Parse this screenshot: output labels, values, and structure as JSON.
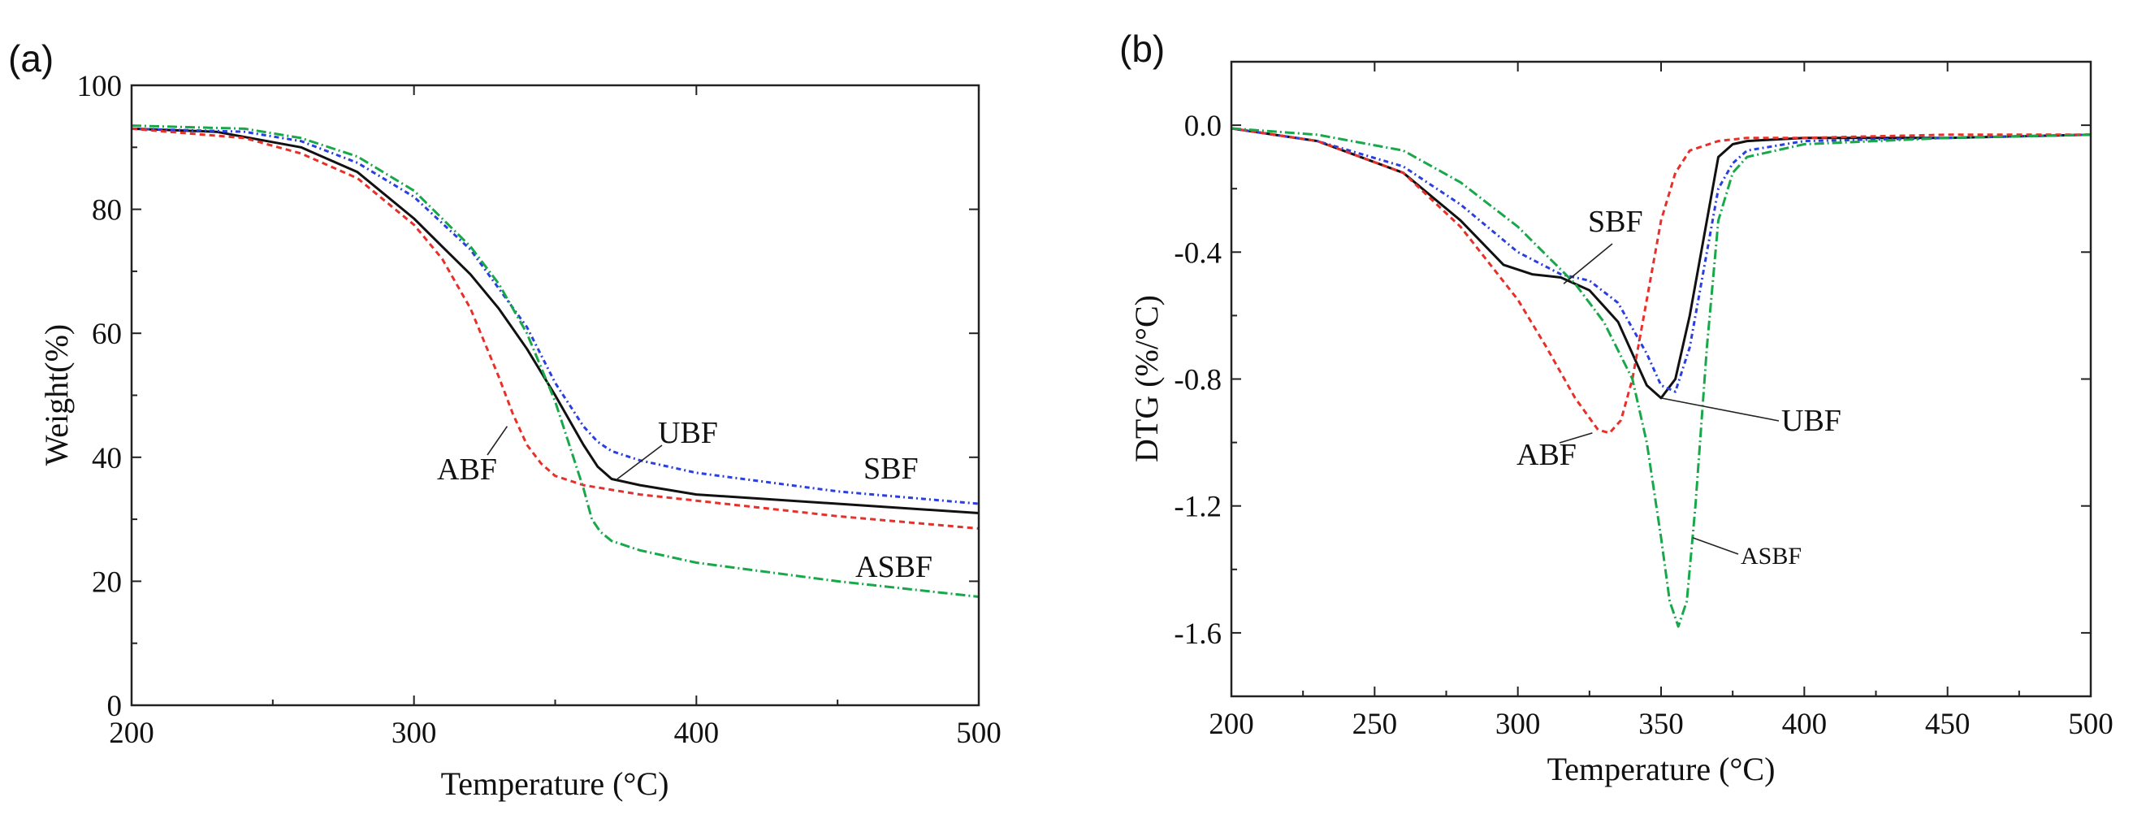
{
  "chart_data": [
    {
      "panel": "(a)",
      "type": "line",
      "xlabel": "Temperature (°C)",
      "ylabel": "Weight(%)",
      "xlim": [
        200,
        500
      ],
      "ylim": [
        0,
        100
      ],
      "xticks": [
        200,
        300,
        400,
        500
      ],
      "yticks": [
        0,
        20,
        40,
        60,
        80,
        100
      ],
      "grid": false,
      "series": [
        {
          "name": "UBF",
          "color": "#111111",
          "dash": "solid",
          "x": [
            200,
            230,
            260,
            280,
            300,
            310,
            320,
            330,
            340,
            350,
            355,
            360,
            365,
            370,
            380,
            400,
            450,
            500
          ],
          "y": [
            93,
            92.5,
            90,
            86,
            78.5,
            74,
            69.5,
            64,
            57.5,
            50,
            46,
            42,
            38.5,
            36.5,
            35.5,
            34,
            32.5,
            31
          ]
        },
        {
          "name": "SBF",
          "color": "#2a3fe0",
          "dash": "6 4 2 4",
          "x": [
            200,
            240,
            260,
            280,
            300,
            320,
            340,
            350,
            360,
            365,
            370,
            380,
            400,
            450,
            500
          ],
          "y": [
            93,
            92.5,
            91,
            87.5,
            82,
            73.5,
            61,
            52,
            45,
            42.5,
            41,
            39.5,
            37.5,
            34.5,
            32.5
          ]
        },
        {
          "name": "ABF",
          "color": "#e8302a",
          "dash": "7 5",
          "x": [
            200,
            240,
            260,
            280,
            300,
            310,
            320,
            330,
            335,
            340,
            345,
            350,
            360,
            380,
            400,
            450,
            500
          ],
          "y": [
            93,
            91.5,
            89,
            85,
            77.5,
            72,
            64,
            53,
            47,
            42,
            39,
            37,
            35.5,
            34,
            33,
            30.5,
            28.5
          ]
        },
        {
          "name": "ASBF",
          "color": "#18a84a",
          "dash": "12 4 2 4",
          "x": [
            200,
            240,
            260,
            280,
            300,
            320,
            330,
            340,
            350,
            355,
            360,
            363,
            366,
            370,
            380,
            400,
            450,
            500
          ],
          "y": [
            93.5,
            93,
            91.5,
            88.5,
            83,
            74,
            68,
            60,
            49,
            42,
            35,
            30,
            28,
            26.5,
            25,
            23,
            20,
            17.5
          ]
        }
      ],
      "annotations": [
        {
          "text": "ABF",
          "series": "ABF",
          "at": {
            "x": 333,
            "y": 45
          }
        },
        {
          "text": "UBF",
          "series": "UBF",
          "at": {
            "x": 372,
            "y": 36.5
          }
        },
        {
          "text": "SBF",
          "series": "SBF",
          "at": null
        },
        {
          "text": "ASBF",
          "series": "ASBF",
          "at": null
        }
      ]
    },
    {
      "panel": "(b)",
      "type": "line",
      "xlabel": "Temperature (°C)",
      "ylabel": "DTG (%/°C)",
      "xlim": [
        200,
        500
      ],
      "ylim": [
        -1.8,
        0.2
      ],
      "xticks": [
        200,
        250,
        300,
        350,
        400,
        450,
        500
      ],
      "yticks": [
        0.0,
        -0.4,
        -0.8,
        -1.2,
        -1.6
      ],
      "grid": false,
      "series": [
        {
          "name": "UBF",
          "color": "#111111",
          "dash": "solid",
          "x": [
            200,
            230,
            260,
            280,
            295,
            305,
            315,
            325,
            335,
            340,
            345,
            350,
            355,
            360,
            365,
            370,
            375,
            380,
            400,
            450,
            500
          ],
          "y": [
            -0.01,
            -0.05,
            -0.15,
            -0.3,
            -0.44,
            -0.47,
            -0.48,
            -0.52,
            -0.62,
            -0.72,
            -0.82,
            -0.86,
            -0.8,
            -0.6,
            -0.35,
            -0.1,
            -0.06,
            -0.05,
            -0.04,
            -0.04,
            -0.03
          ]
        },
        {
          "name": "SBF",
          "color": "#2a3fe0",
          "dash": "6 4 2 4",
          "x": [
            200,
            230,
            260,
            280,
            300,
            315,
            325,
            335,
            345,
            350,
            355,
            360,
            365,
            370,
            375,
            380,
            400,
            450,
            500
          ],
          "y": [
            -0.01,
            -0.05,
            -0.13,
            -0.25,
            -0.4,
            -0.47,
            -0.49,
            -0.56,
            -0.72,
            -0.82,
            -0.84,
            -0.7,
            -0.45,
            -0.2,
            -0.12,
            -0.08,
            -0.05,
            -0.04,
            -0.03
          ]
        },
        {
          "name": "ABF",
          "color": "#e8302a",
          "dash": "7 5",
          "x": [
            200,
            230,
            260,
            280,
            300,
            310,
            320,
            328,
            332,
            336,
            340,
            345,
            350,
            355,
            360,
            370,
            380,
            400,
            450,
            500
          ],
          "y": [
            -0.01,
            -0.05,
            -0.15,
            -0.32,
            -0.55,
            -0.7,
            -0.86,
            -0.96,
            -0.97,
            -0.93,
            -0.8,
            -0.55,
            -0.3,
            -0.15,
            -0.08,
            -0.05,
            -0.04,
            -0.04,
            -0.03,
            -0.03
          ]
        },
        {
          "name": "ASBF",
          "color": "#18a84a",
          "dash": "12 4 2 4",
          "x": [
            200,
            230,
            260,
            280,
            300,
            320,
            330,
            340,
            345,
            350,
            353,
            356,
            359,
            362,
            366,
            370,
            375,
            380,
            400,
            450,
            500
          ],
          "y": [
            -0.01,
            -0.03,
            -0.08,
            -0.18,
            -0.32,
            -0.5,
            -0.62,
            -0.8,
            -1.0,
            -1.3,
            -1.5,
            -1.58,
            -1.5,
            -1.2,
            -0.7,
            -0.3,
            -0.15,
            -0.1,
            -0.06,
            -0.04,
            -0.03
          ]
        }
      ],
      "annotations": [
        {
          "text": "SBF",
          "series": "SBF",
          "at": {
            "x": 316,
            "y": -0.5
          }
        },
        {
          "text": "UBF",
          "series": "UBF",
          "at": {
            "x": 350,
            "y": -0.86
          }
        },
        {
          "text": "ABF",
          "series": "ABF",
          "at": {
            "x": 326,
            "y": -0.97
          }
        },
        {
          "text": "ASBF",
          "series": "ASBF",
          "at": {
            "x": 361,
            "y": -1.3
          }
        }
      ]
    }
  ]
}
